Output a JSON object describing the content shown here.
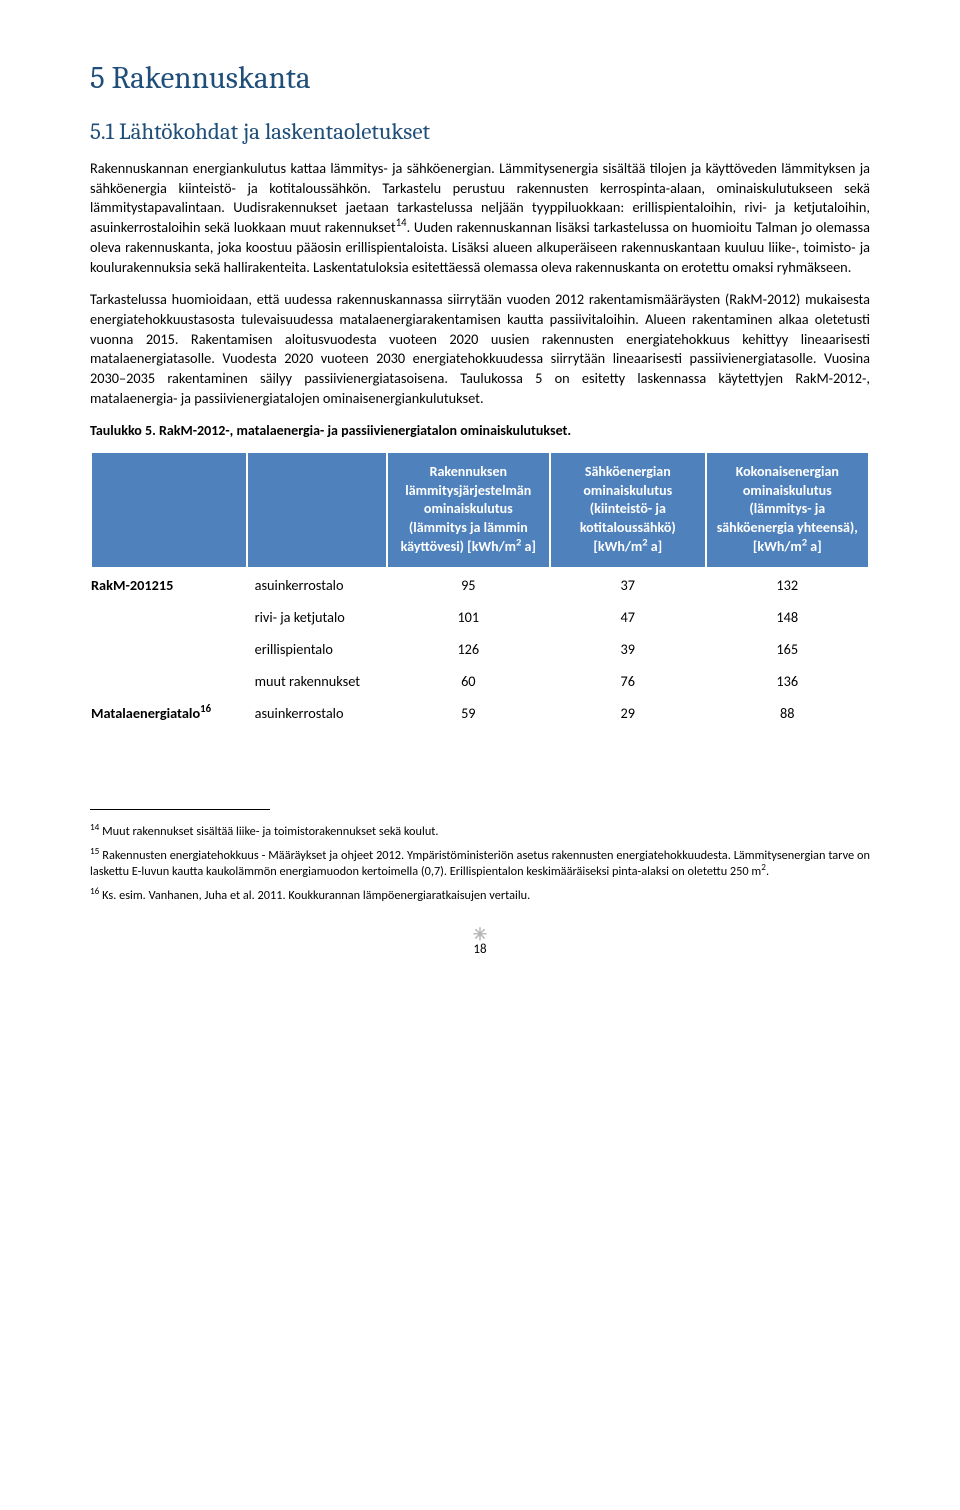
{
  "heading1": "5  Rakennuskanta",
  "heading2": "5.1  Lähtökohdat ja laskentaoletukset",
  "para1": "Rakennuskannan energiankulutus kattaa lämmitys- ja sähköenergian. Lämmitysenergia sisältää tilojen ja käyttöveden lämmityksen ja sähköenergia kiinteistö- ja kotitaloussähkön. Tarkastelu perustuu rakennusten kerrospinta-alaan, ominaiskulutukseen sekä lämmitystapavalintaan. Uudisrakennukset jaetaan tarkastelussa neljään tyyppiluokkaan: erillispientaloihin, rivi- ja ketjutaloihin, asuinkerrostaloihin sekä luokkaan muut rakennukset14. Uuden rakennuskannan lisäksi tarkastelussa on huomioitu Talman jo olemassa oleva rakennuskanta, joka koostuu pääosin erillispientaloista. Lisäksi alueen alkuperäiseen rakennuskantaan kuuluu liike-, toimisto- ja koulurakennuksia sekä hallirakenteita. Laskentatuloksia esitettäessä olemassa oleva rakennuskanta on erotettu omaksi ryhmäkseen.",
  "para2": "Tarkastelussa huomioidaan, että uudessa rakennuskannassa siirrytään vuoden 2012 rakentamismääräysten (RakM-2012) mukaisesta energiatehokkuustasosta tulevaisuudessa matalaenergiarakentamisen kautta passiivitaloihin. Alueen rakentaminen alkaa oletetusti vuonna 2015. Rakentamisen aloitusvuodesta vuoteen 2020 uusien rakennusten energiatehokkuus kehittyy lineaarisesti matalaenergiatasolle. Vuodesta 2020 vuoteen 2030 energiatehokkuudessa siirrytään lineaarisesti passiivienergiatasolle. Vuosina 2030–2035 rakentaminen säilyy passiivienergiatasoisena. Taulukossa 5 on esitetty laskennassa käytettyjen RakM-2012-, matalaenergia- ja passiivienergiatalojen ominaisenergiankulutukset.",
  "tableCaption": "Taulukko 5. RakM-2012-, matalaenergia- ja passiivienergiatalon ominaiskulutukset.",
  "table": {
    "headerBg": "#4f81bd",
    "headerFg": "#ffffff",
    "headers": [
      "",
      "",
      "Rakennuksen lämmitysjärjestelmän ominaiskulutus (lämmitys ja lämmin käyttövesi) [kWh/m2 a]",
      "Sähköenergian ominaiskulutus (kiinteistö- ja kotitaloussähkö) [kWh/m2 a]",
      "Kokonaisenergian ominaiskulutus (lämmitys- ja sähköenergia yhteensä), [kWh/m2 a]"
    ],
    "groups": [
      {
        "label": "RakM-201215",
        "rows": [
          {
            "sub": "asuinkerrostalo",
            "v1": "95",
            "v2": "37",
            "v3": "132"
          },
          {
            "sub": "rivi- ja ketjutalo",
            "v1": "101",
            "v2": "47",
            "v3": "148"
          },
          {
            "sub": "erillispientalo",
            "v1": "126",
            "v2": "39",
            "v3": "165"
          },
          {
            "sub": "muut rakennukset",
            "v1": "60",
            "v2": "76",
            "v3": "136"
          }
        ]
      },
      {
        "label": "Matalaenergiatalo16",
        "rows": [
          {
            "sub": "asuinkerrostalo",
            "v1": "59",
            "v2": "29",
            "v3": "88"
          }
        ]
      }
    ]
  },
  "footnotes": {
    "f14": "14 Muut rakennukset sisältää liike- ja toimistorakennukset sekä koulut.",
    "f15": "15 Rakennusten energiatehokkuus - Määräykset ja ohjeet 2012. Ympäristöministeriön asetus rakennusten energiatehokkuudesta. Lämmitysenergian tarve on laskettu E-luvun kautta kaukolämmön energiamuodon kertoimella (0,7). Erillispientalon keskimääräiseksi pinta-alaksi on oletettu 250 m2.",
    "f16": "16 Ks. esim. Vanhanen, Juha et al. 2011. Koukkurannan lämpöenergiaratkaisujen vertailu."
  },
  "pageNumber": "18",
  "ornament": "✳"
}
